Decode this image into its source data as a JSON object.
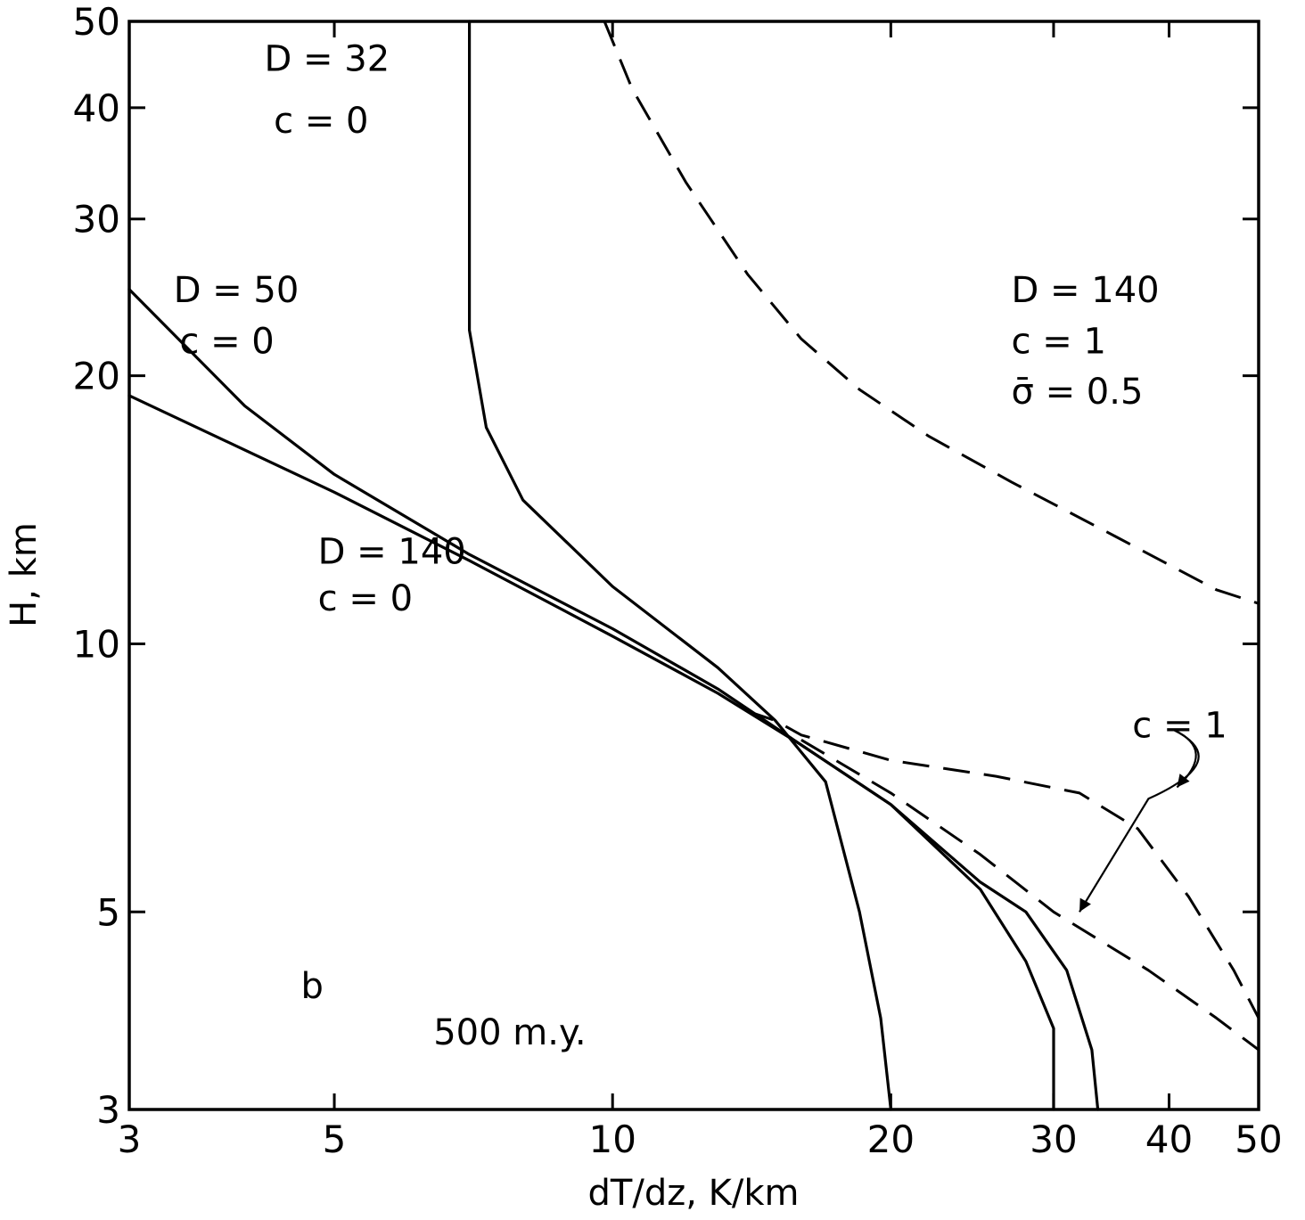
{
  "chart_data": {
    "type": "line",
    "title": "",
    "xlabel": "dT/dz,   K/km",
    "ylabel": "H, km",
    "x_scale": "log",
    "y_scale": "log",
    "xlim": [
      3,
      50
    ],
    "ylim": [
      3,
      50
    ],
    "grid": false,
    "x_ticks": [
      3,
      5,
      10,
      20,
      30,
      40,
      50
    ],
    "y_ticks": [
      3,
      5,
      10,
      20,
      30,
      40,
      50
    ],
    "x_tick_labels": [
      "3",
      "5",
      "10",
      "20",
      "30",
      "40",
      "50"
    ],
    "y_tick_labels": [
      "3",
      "5",
      "10",
      "20",
      "30",
      "40",
      "50"
    ],
    "series": [
      {
        "style": "solid",
        "points": [
          [
            7,
            50
          ],
          [
            7,
            22.5
          ],
          [
            7.3,
            17.5
          ],
          [
            8,
            14.5
          ],
          [
            10,
            11.6
          ],
          [
            13,
            9.4
          ],
          [
            15,
            8.2
          ],
          [
            17,
            7.0
          ],
          [
            18.5,
            5.0
          ],
          [
            19.5,
            3.8
          ],
          [
            20,
            3
          ]
        ]
      },
      {
        "style": "solid",
        "points": [
          [
            3,
            25
          ],
          [
            4,
            18.5
          ],
          [
            5,
            15.5
          ],
          [
            7,
            12.6
          ],
          [
            10,
            10.4
          ],
          [
            13,
            8.9
          ],
          [
            16,
            7.7
          ],
          [
            20,
            6.6
          ],
          [
            25,
            5.3
          ],
          [
            28,
            4.4
          ],
          [
            30,
            3.7
          ],
          [
            30,
            3
          ]
        ]
      },
      {
        "style": "solid",
        "points": [
          [
            3,
            19
          ],
          [
            5,
            14.8
          ],
          [
            7,
            12.4
          ],
          [
            10,
            10.2
          ],
          [
            13,
            8.8
          ],
          [
            16,
            7.7
          ],
          [
            20,
            6.6
          ],
          [
            25,
            5.4
          ],
          [
            28,
            5.0
          ],
          [
            31,
            4.3
          ],
          [
            33,
            3.5
          ],
          [
            33.5,
            3
          ]
        ]
      },
      {
        "style": "dashed",
        "points": [
          [
            9.8,
            50
          ],
          [
            10.5,
            42
          ],
          [
            12,
            33
          ],
          [
            14,
            26
          ],
          [
            16,
            22
          ],
          [
            18.5,
            19.3
          ],
          [
            22,
            17.1
          ],
          [
            27,
            15.2
          ],
          [
            35,
            13.2
          ],
          [
            45,
            11.5
          ],
          [
            50,
            11.1
          ]
        ]
      },
      {
        "style": "dashed",
        "points": [
          [
            14,
            8.4
          ],
          [
            15,
            8.2
          ],
          [
            16,
            7.9
          ],
          [
            20,
            7.4
          ],
          [
            26,
            7.1
          ],
          [
            32,
            6.8
          ],
          [
            37,
            6.2
          ],
          [
            42,
            5.2
          ],
          [
            47,
            4.3
          ],
          [
            50,
            3.8
          ]
        ]
      },
      {
        "style": "dashed",
        "points": [
          [
            16,
            7.8
          ],
          [
            20,
            6.8
          ],
          [
            25,
            5.8
          ],
          [
            30,
            5.0
          ],
          [
            38,
            4.3
          ],
          [
            45,
            3.8
          ],
          [
            50,
            3.5
          ]
        ]
      }
    ],
    "annotations": [
      {
        "text": "D = 32",
        "x": 4.2,
        "y": 44
      },
      {
        "text": "c = 0",
        "x": 4.3,
        "y": 37.5
      },
      {
        "text": "D = 50",
        "x": 3.35,
        "y": 24.2
      },
      {
        "text": "c = 0",
        "x": 3.4,
        "y": 21.2
      },
      {
        "text": "D = 140",
        "x": 4.8,
        "y": 12.3
      },
      {
        "text": "c = 0",
        "x": 4.8,
        "y": 10.9
      },
      {
        "text": "D = 140",
        "x": 27,
        "y": 24.2
      },
      {
        "text": "c = 1",
        "x": 27,
        "y": 21.2
      },
      {
        "text": "σ̄ = 0.5",
        "x": 27,
        "y": 18.6
      },
      {
        "text": "c = 1",
        "x": 36.5,
        "y": 7.85
      },
      {
        "text": "b",
        "x": 4.6,
        "y": 4.0
      },
      {
        "text": "500 m.y.",
        "x": 6.4,
        "y": 3.55
      }
    ]
  }
}
